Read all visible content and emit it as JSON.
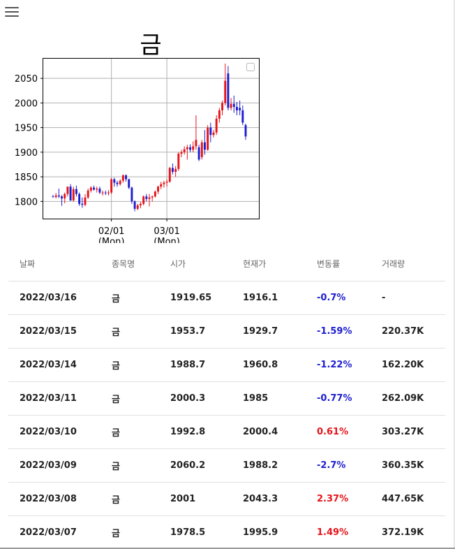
{
  "header": {
    "menu_icon": "hamburger-menu-icon"
  },
  "chart_data": {
    "type": "candlestick",
    "title": "금",
    "y_ticks": [
      1800,
      1850,
      1900,
      1950,
      2000,
      2050
    ],
    "ylim": [
      1765,
      2090
    ],
    "x_tick_labels": [
      {
        "date": "2022/02/01",
        "line1": "02/01",
        "line2": "(Mon)"
      },
      {
        "date": "2022/03/01",
        "line1": "03/01",
        "line2": "(Mon)"
      }
    ],
    "grid": true,
    "legend": "top-right empty box",
    "colors": {
      "up": "#e5141a",
      "down": "#1d1dd0"
    },
    "candles": [
      {
        "date": "2022/01/03",
        "o": 1810,
        "h": 1813,
        "l": 1808,
        "c": 1809
      },
      {
        "date": "2022/01/04",
        "o": 1809,
        "h": 1817,
        "l": 1806,
        "c": 1812
      },
      {
        "date": "2022/01/05",
        "o": 1812,
        "h": 1826,
        "l": 1807,
        "c": 1810
      },
      {
        "date": "2022/01/06",
        "o": 1810,
        "h": 1813,
        "l": 1791,
        "c": 1806
      },
      {
        "date": "2022/01/07",
        "o": 1806,
        "h": 1818,
        "l": 1796,
        "c": 1815
      },
      {
        "date": "2022/01/10",
        "o": 1815,
        "h": 1830,
        "l": 1810,
        "c": 1830
      },
      {
        "date": "2022/01/11",
        "o": 1830,
        "h": 1835,
        "l": 1801,
        "c": 1802
      },
      {
        "date": "2022/01/12",
        "o": 1802,
        "h": 1830,
        "l": 1800,
        "c": 1825
      },
      {
        "date": "2022/01/13",
        "o": 1825,
        "h": 1832,
        "l": 1810,
        "c": 1815
      },
      {
        "date": "2022/01/14",
        "o": 1815,
        "h": 1818,
        "l": 1791,
        "c": 1795
      },
      {
        "date": "2022/01/18",
        "o": 1795,
        "h": 1808,
        "l": 1787,
        "c": 1793
      },
      {
        "date": "2022/01/19",
        "o": 1793,
        "h": 1815,
        "l": 1790,
        "c": 1808
      },
      {
        "date": "2022/01/20",
        "o": 1808,
        "h": 1826,
        "l": 1805,
        "c": 1822
      },
      {
        "date": "2022/01/21",
        "o": 1822,
        "h": 1831,
        "l": 1818,
        "c": 1828
      },
      {
        "date": "2022/01/24",
        "o": 1828,
        "h": 1832,
        "l": 1822,
        "c": 1824
      },
      {
        "date": "2022/01/25",
        "o": 1824,
        "h": 1830,
        "l": 1818,
        "c": 1826
      },
      {
        "date": "2022/01/26",
        "o": 1826,
        "h": 1830,
        "l": 1815,
        "c": 1818
      },
      {
        "date": "2022/01/27",
        "o": 1818,
        "h": 1822,
        "l": 1812,
        "c": 1818
      },
      {
        "date": "2022/01/28",
        "o": 1818,
        "h": 1822,
        "l": 1813,
        "c": 1817
      },
      {
        "date": "2022/01/31",
        "o": 1817,
        "h": 1823,
        "l": 1812,
        "c": 1818
      },
      {
        "date": "2022/02/01",
        "o": 1818,
        "h": 1848,
        "l": 1815,
        "c": 1845
      },
      {
        "date": "2022/02/02",
        "o": 1845,
        "h": 1848,
        "l": 1830,
        "c": 1838
      },
      {
        "date": "2022/02/03",
        "o": 1838,
        "h": 1842,
        "l": 1830,
        "c": 1835
      },
      {
        "date": "2022/02/04",
        "o": 1835,
        "h": 1845,
        "l": 1832,
        "c": 1842
      },
      {
        "date": "2022/02/07",
        "o": 1842,
        "h": 1855,
        "l": 1838,
        "c": 1853
      },
      {
        "date": "2022/02/08",
        "o": 1853,
        "h": 1855,
        "l": 1840,
        "c": 1845
      },
      {
        "date": "2022/02/09",
        "o": 1845,
        "h": 1846,
        "l": 1825,
        "c": 1828
      },
      {
        "date": "2022/02/10",
        "o": 1828,
        "h": 1830,
        "l": 1795,
        "c": 1800
      },
      {
        "date": "2022/02/11",
        "o": 1800,
        "h": 1802,
        "l": 1780,
        "c": 1785
      },
      {
        "date": "2022/02/14",
        "o": 1785,
        "h": 1795,
        "l": 1782,
        "c": 1792
      },
      {
        "date": "2022/02/15",
        "o": 1792,
        "h": 1799,
        "l": 1786,
        "c": 1795
      },
      {
        "date": "2022/02/16",
        "o": 1795,
        "h": 1812,
        "l": 1792,
        "c": 1810
      },
      {
        "date": "2022/02/17",
        "o": 1810,
        "h": 1815,
        "l": 1800,
        "c": 1805
      },
      {
        "date": "2022/02/18",
        "o": 1805,
        "h": 1815,
        "l": 1790,
        "c": 1808
      },
      {
        "date": "2022/02/22",
        "o": 1808,
        "h": 1812,
        "l": 1800,
        "c": 1810
      },
      {
        "date": "2022/02/23",
        "o": 1810,
        "h": 1822,
        "l": 1808,
        "c": 1820
      },
      {
        "date": "2022/02/24",
        "o": 1820,
        "h": 1832,
        "l": 1815,
        "c": 1830
      },
      {
        "date": "2022/02/25",
        "o": 1830,
        "h": 1840,
        "l": 1825,
        "c": 1835
      },
      {
        "date": "2022/02/28",
        "o": 1835,
        "h": 1842,
        "l": 1828,
        "c": 1838
      },
      {
        "date": "2022/03/01",
        "o": 1838,
        "h": 1845,
        "l": 1830,
        "c": 1840
      },
      {
        "date": "2022/03/02",
        "o": 1840,
        "h": 1870,
        "l": 1838,
        "c": 1868
      },
      {
        "date": "2022/03/03",
        "o": 1868,
        "h": 1877,
        "l": 1855,
        "c": 1860
      },
      {
        "date": "2022/03/04",
        "o": 1860,
        "h": 1872,
        "l": 1850,
        "c": 1866
      },
      {
        "date": "2022/03/05",
        "o": 1866,
        "h": 1900,
        "l": 1862,
        "c": 1897
      },
      {
        "date": "2022/03/06",
        "o": 1897,
        "h": 1905,
        "l": 1890,
        "c": 1900
      },
      {
        "date": "2022/03/07",
        "o": 1900,
        "h": 1912,
        "l": 1895,
        "c": 1906
      },
      {
        "date": "2022/03/08",
        "o": 1906,
        "h": 1915,
        "l": 1885,
        "c": 1910
      },
      {
        "date": "2022/03/09",
        "o": 1910,
        "h": 1916,
        "l": 1900,
        "c": 1905
      },
      {
        "date": "2022/03/10",
        "o": 1905,
        "h": 1922,
        "l": 1900,
        "c": 1912
      },
      {
        "date": "2022/03/11",
        "o": 1912,
        "h": 1975,
        "l": 1905,
        "c": 1925
      },
      {
        "date": "2022/03/12",
        "o": 1910,
        "h": 1915,
        "l": 1882,
        "c": 1885
      },
      {
        "date": "2022/03/13",
        "o": 1890,
        "h": 1925,
        "l": 1885,
        "c": 1920
      },
      {
        "date": "2022/03/14",
        "o": 1920,
        "h": 1945,
        "l": 1895,
        "c": 1905
      },
      {
        "date": "2022/03/15",
        "o": 1905,
        "h": 1955,
        "l": 1903,
        "c": 1950
      },
      {
        "date": "2022/03/16",
        "o": 1950,
        "h": 1960,
        "l": 1920,
        "c": 1935
      },
      {
        "date": "2022/03/17",
        "o": 1935,
        "h": 1945,
        "l": 1930,
        "c": 1940
      },
      {
        "date": "2022/03/18",
        "o": 1940,
        "h": 1975,
        "l": 1935,
        "c": 1968
      },
      {
        "date": "2022/03/19",
        "o": 1968,
        "h": 1990,
        "l": 1960,
        "c": 1985
      },
      {
        "date": "2022/03/20",
        "o": 1985,
        "h": 2005,
        "l": 1975,
        "c": 2000
      },
      {
        "date": "2022/03/21",
        "o": 2000,
        "h": 2080,
        "l": 1995,
        "c": 2045
      },
      {
        "date": "2022/03/22",
        "o": 2060,
        "h": 2075,
        "l": 1985,
        "c": 1990
      },
      {
        "date": "2022/03/23",
        "o": 1990,
        "h": 2010,
        "l": 1985,
        "c": 1998
      },
      {
        "date": "2022/03/24",
        "o": 1998,
        "h": 2015,
        "l": 1980,
        "c": 1992
      },
      {
        "date": "2022/03/25",
        "o": 1992,
        "h": 2002,
        "l": 1975,
        "c": 1985
      },
      {
        "date": "2022/03/26",
        "o": 1990,
        "h": 2005,
        "l": 1975,
        "c": 1985
      },
      {
        "date": "2022/03/27",
        "o": 1985,
        "h": 1995,
        "l": 1955,
        "c": 1960
      },
      {
        "date": "2022/03/28",
        "o": 1955,
        "h": 1958,
        "l": 1925,
        "c": 1932
      }
    ]
  },
  "table": {
    "headers": [
      "날짜",
      "종목명",
      "시가",
      "현재가",
      "변동률",
      "거래량"
    ],
    "rows": [
      {
        "date": "2022/03/16",
        "name": "금",
        "open": "1919.65",
        "current": "1916.1",
        "change": "-0.7%",
        "direction": "down",
        "volume": "-"
      },
      {
        "date": "2022/03/15",
        "name": "금",
        "open": "1953.7",
        "current": "1929.7",
        "change": "-1.59%",
        "direction": "down",
        "volume": "220.37K"
      },
      {
        "date": "2022/03/14",
        "name": "금",
        "open": "1988.7",
        "current": "1960.8",
        "change": "-1.22%",
        "direction": "down",
        "volume": "162.20K"
      },
      {
        "date": "2022/03/11",
        "name": "금",
        "open": "2000.3",
        "current": "1985",
        "change": "-0.77%",
        "direction": "down",
        "volume": "262.09K"
      },
      {
        "date": "2022/03/10",
        "name": "금",
        "open": "1992.8",
        "current": "2000.4",
        "change": "0.61%",
        "direction": "up",
        "volume": "303.27K"
      },
      {
        "date": "2022/03/09",
        "name": "금",
        "open": "2060.2",
        "current": "1988.2",
        "change": "-2.7%",
        "direction": "down",
        "volume": "360.35K"
      },
      {
        "date": "2022/03/08",
        "name": "금",
        "open": "2001",
        "current": "2043.3",
        "change": "2.37%",
        "direction": "up",
        "volume": "447.65K"
      },
      {
        "date": "2022/03/07",
        "name": "금",
        "open": "1978.5",
        "current": "1995.9",
        "change": "1.49%",
        "direction": "up",
        "volume": "372.19K"
      }
    ]
  }
}
